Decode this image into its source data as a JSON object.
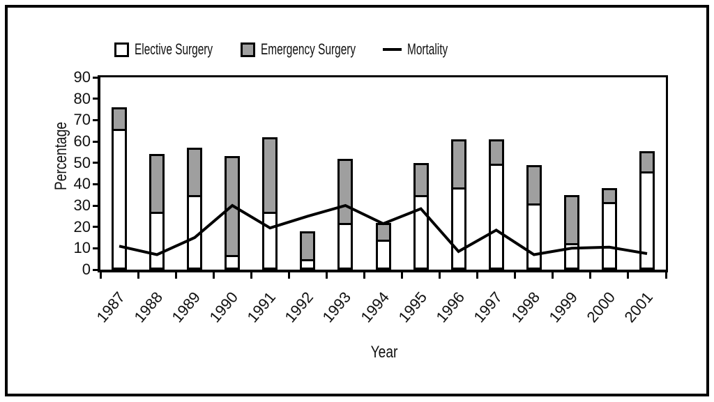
{
  "chart_data": {
    "type": "bar",
    "subtype": "stacked-bars-with-line-overlay",
    "title": "",
    "xlabel": "Year",
    "ylabel": "Percentage",
    "ylim": [
      0,
      90
    ],
    "yticks": [
      0,
      10,
      20,
      30,
      40,
      50,
      60,
      70,
      80,
      90
    ],
    "grid": false,
    "legend_position": "top-center",
    "categories": [
      "1987",
      "1988",
      "1989",
      "1990",
      "1991",
      "1992",
      "1993",
      "1994",
      "1995",
      "1996",
      "1997",
      "1998",
      "1999",
      "2000",
      "2001"
    ],
    "series": [
      {
        "name": "Elective Surgery",
        "type": "bar-stacked",
        "values": [
          66,
          27,
          35,
          7,
          27,
          5,
          22,
          14,
          35,
          38.5,
          49.5,
          31,
          12.5,
          31.5,
          46
        ]
      },
      {
        "name": "Emergency Surgery",
        "type": "bar-stacked",
        "values": [
          10,
          27,
          22,
          46,
          35,
          13,
          30,
          8,
          15,
          22.5,
          11.5,
          18,
          22.5,
          6.5,
          9.5
        ]
      },
      {
        "name": "Mortality",
        "type": "line",
        "values": [
          11,
          7,
          15,
          30,
          19.5,
          25,
          30,
          21.5,
          28.5,
          8.5,
          18.5,
          7,
          10,
          10.5,
          7.5
        ]
      }
    ]
  },
  "colors": {
    "elective_fill": "#ffffff",
    "emergency_fill": "#9f9f9f",
    "mortality_line": "#000000",
    "frame": "#000000",
    "text": "#111111"
  }
}
